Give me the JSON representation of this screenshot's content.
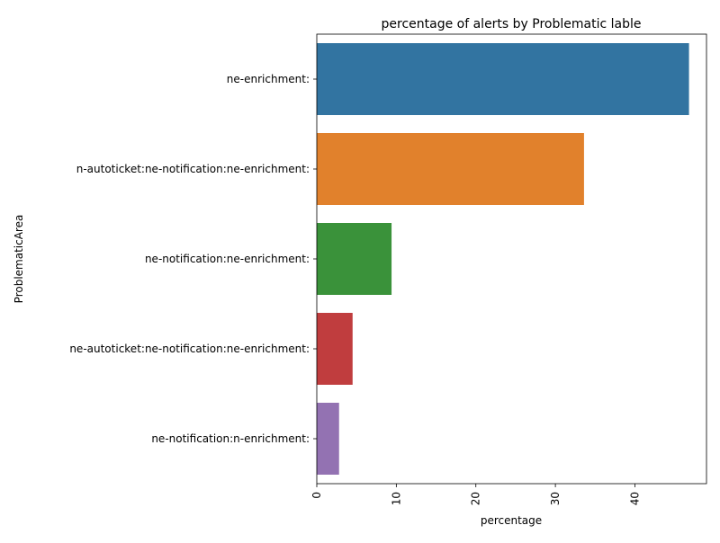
{
  "chart_data": {
    "type": "bar",
    "orientation": "horizontal",
    "title": "percentage of alerts by Problematic lable",
    "xlabel": "percentage",
    "ylabel": "ProblematicArea",
    "xlim": [
      0,
      49
    ],
    "x_ticks": [
      0,
      10,
      20,
      30,
      40
    ],
    "x_tick_rotation": 90,
    "grid": false,
    "legend": "none",
    "categories": [
      "ne-enrichment:",
      "n-autoticket:ne-notification:ne-enrichment:",
      "ne-notification:ne-enrichment:",
      "ne-autoticket:ne-notification:ne-enrichment:",
      "ne-notification:n-enrichment:"
    ],
    "values": [
      46.8,
      33.6,
      9.4,
      4.5,
      2.8
    ],
    "colors": [
      "#3274a1",
      "#e1812c",
      "#3a923a",
      "#c03d3e",
      "#9372b2"
    ]
  }
}
